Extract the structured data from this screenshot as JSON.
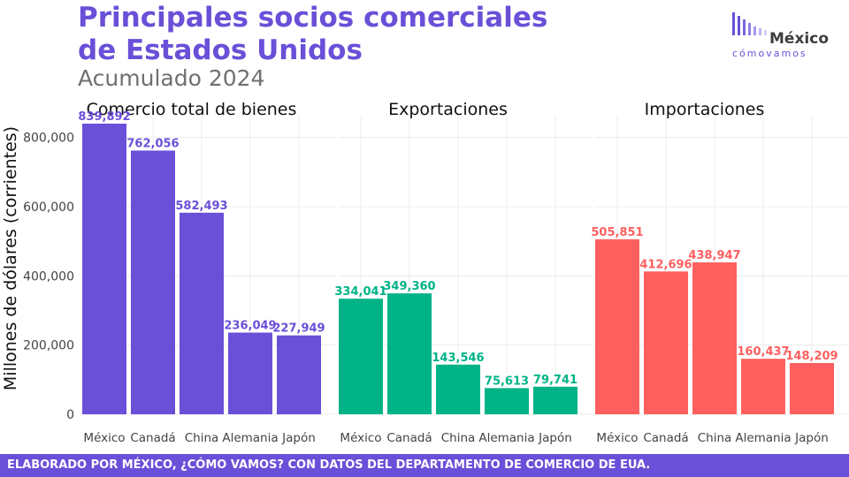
{
  "chart_data": {
    "type": "bar",
    "title": "Principales socios comerciales de Estados Unidos",
    "subtitle": "Acumulado 2024",
    "ylabel": "Millones de dólares (corrientes)",
    "ylim": [
      0,
      850000
    ],
    "yticks": [
      0,
      200000,
      400000,
      600000,
      800000
    ],
    "ytick_labels": [
      "0",
      "200,000",
      "400,000",
      "600,000",
      "800,000"
    ],
    "categories": [
      "México",
      "Canadá",
      "China",
      "Alemania",
      "Japón"
    ],
    "panels": [
      {
        "name": "Comercio total de bienes",
        "color": "#6a4fd8",
        "values": [
          839892,
          762056,
          582493,
          236049,
          227949
        ],
        "labels": [
          "839,892",
          "762,056",
          "582,493",
          "236,049",
          "227,949"
        ]
      },
      {
        "name": "Exportaciones",
        "color": "#00b386",
        "values": [
          334041,
          349360,
          143546,
          75613,
          79741
        ],
        "labels": [
          "334,041",
          "349,360",
          "143,546",
          "75,613",
          "79,741"
        ]
      },
      {
        "name": "Importaciones",
        "color": "#ff5f5f",
        "values": [
          505851,
          412696,
          438947,
          160437,
          148209
        ],
        "labels": [
          "505,851",
          "412,696",
          "438,947",
          "160,437",
          "148,209"
        ]
      }
    ]
  },
  "logo": {
    "name": "México",
    "tagline": "cómovamos",
    "bar_color": "#6a4fd8"
  },
  "footer": {
    "text": "ELABORADO POR MÉXICO, ¿CÓMO VAMOS? CON DATOS DEL DEPARTAMENTO DE COMERCIO DE EUA.",
    "bg_color": "#6a4fd8"
  }
}
